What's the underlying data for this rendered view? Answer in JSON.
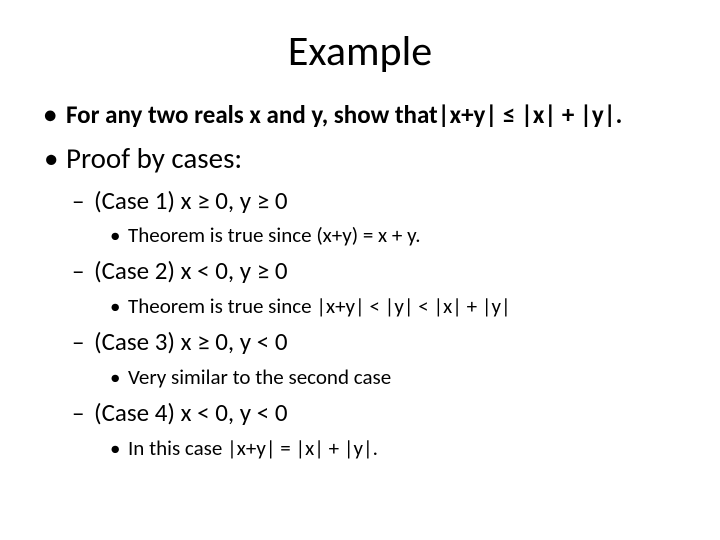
{
  "slide": {
    "title": "Example",
    "background_color": "#ffffff",
    "text_color": "#000000",
    "title_fontsize": 42,
    "l1_fontsize": 25,
    "l1_normal_fontsize": 29,
    "l2_fontsize": 25,
    "l3_fontsize": 21,
    "items": {
      "statement": "For any two reals x and y, show that|x+y| ≤ |x| + |y|.",
      "proof_label": "Proof by cases:",
      "case1": {
        "label": "(Case 1) x ≥ 0, y ≥ 0",
        "detail": "Theorem is true since  (x+y) = x + y."
      },
      "case2": {
        "label": "(Case 2) x < 0, y ≥ 0",
        "detail": "Theorem is true since |x+y| < |y| < |x| + |y|"
      },
      "case3": {
        "label": "(Case 3) x ≥ 0, y < 0",
        "detail": "Very similar to the second case"
      },
      "case4": {
        "label": "(Case 4) x < 0, y < 0",
        "detail": "In this case |x+y| = |x| + |y|."
      }
    }
  }
}
